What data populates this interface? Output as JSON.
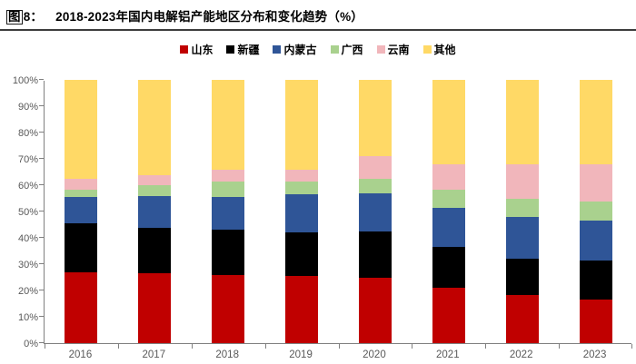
{
  "header": {
    "figure_char": "图",
    "figure_num": "8：",
    "title": "2018-2023年国内电解铝产能地区分布和变化趋势（%）"
  },
  "chart_data": {
    "type": "bar",
    "stacked": true,
    "title": "图8： 2018-2023年国内电解铝产能地区分布和变化趋势（%）",
    "categories": [
      "2016",
      "2017",
      "2018",
      "2019",
      "2020",
      "2021",
      "2022",
      "2023"
    ],
    "series": [
      {
        "name": "山东",
        "color": "#C00000",
        "values": [
          27,
          26.5,
          26,
          25.5,
          25,
          21,
          18.5,
          16.5
        ]
      },
      {
        "name": "新疆",
        "color": "#000000",
        "values": [
          18.5,
          17.5,
          17,
          16.5,
          17.5,
          15.5,
          13.5,
          15
        ]
      },
      {
        "name": "内蒙古",
        "color": "#2F5597",
        "values": [
          10,
          12,
          12.5,
          14.5,
          14.5,
          15,
          16,
          15
        ]
      },
      {
        "name": "广西",
        "color": "#A9D18E",
        "values": [
          3,
          4,
          6,
          5,
          5.5,
          7,
          7,
          7.5
        ]
      },
      {
        "name": "云南",
        "color": "#F1B6BB",
        "values": [
          4,
          4,
          4.5,
          4.5,
          8.5,
          9.5,
          13,
          14
        ]
      },
      {
        "name": "其他",
        "color": "#FFD966",
        "values": [
          37.5,
          36,
          34,
          34,
          29,
          32,
          32,
          32
        ]
      }
    ],
    "ylabel": "",
    "xlabel": "",
    "ylim": [
      0,
      100
    ],
    "ytick_step": 10,
    "ytick_suffix": "%",
    "y_tick_labels": [
      "0%",
      "10%",
      "20%",
      "30%",
      "40%",
      "50%",
      "60%",
      "70%",
      "80%",
      "90%",
      "100%"
    ],
    "legend_position": "top-center",
    "grid": false,
    "axis_color": "#808080",
    "tick_label_color": "#595959"
  }
}
